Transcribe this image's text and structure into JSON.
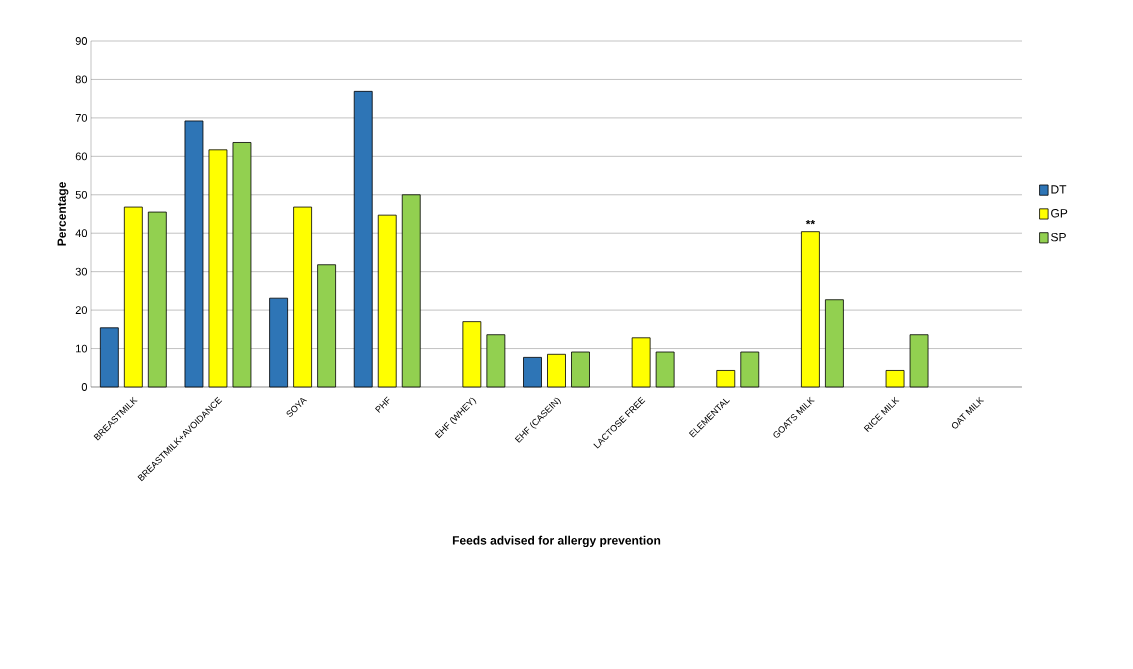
{
  "chart_data": {
    "type": "bar",
    "xlabel": "Feeds advised for allergy prevention",
    "ylabel": "Percentage",
    "categories": [
      "BREASTMILK",
      "BREASTMILK+AVOIDANCE",
      "SOYA",
      "PHF",
      "EHF (WHEY)",
      "EHF (CASEIN)",
      "LACTOSE FREE",
      "ELEMENTAL",
      "GOATS MILK",
      "RICE MILK",
      "OAT MILK"
    ],
    "series": [
      {
        "name": "DT",
        "color": "#2e75b6",
        "values": [
          15.4,
          69.2,
          23.1,
          76.9,
          null,
          7.7,
          null,
          null,
          null,
          null,
          null
        ]
      },
      {
        "name": "GP",
        "color": "#ffff00",
        "values": [
          46.8,
          61.7,
          46.8,
          44.7,
          17.0,
          8.5,
          12.8,
          4.3,
          40.4,
          4.3,
          null
        ]
      },
      {
        "name": "SP",
        "color": "#92d050",
        "values": [
          45.5,
          63.6,
          31.8,
          50.0,
          13.6,
          9.1,
          9.1,
          9.1,
          22.7,
          13.6,
          null
        ]
      }
    ],
    "ylim": [
      0,
      90
    ],
    "yticks": [
      0,
      10,
      20,
      30,
      40,
      50,
      60,
      70,
      80,
      90
    ],
    "grid": "y",
    "legend": "right",
    "annotations": [
      {
        "text": "**",
        "x": "GOATS MILK",
        "y": 40.4
      }
    ]
  }
}
